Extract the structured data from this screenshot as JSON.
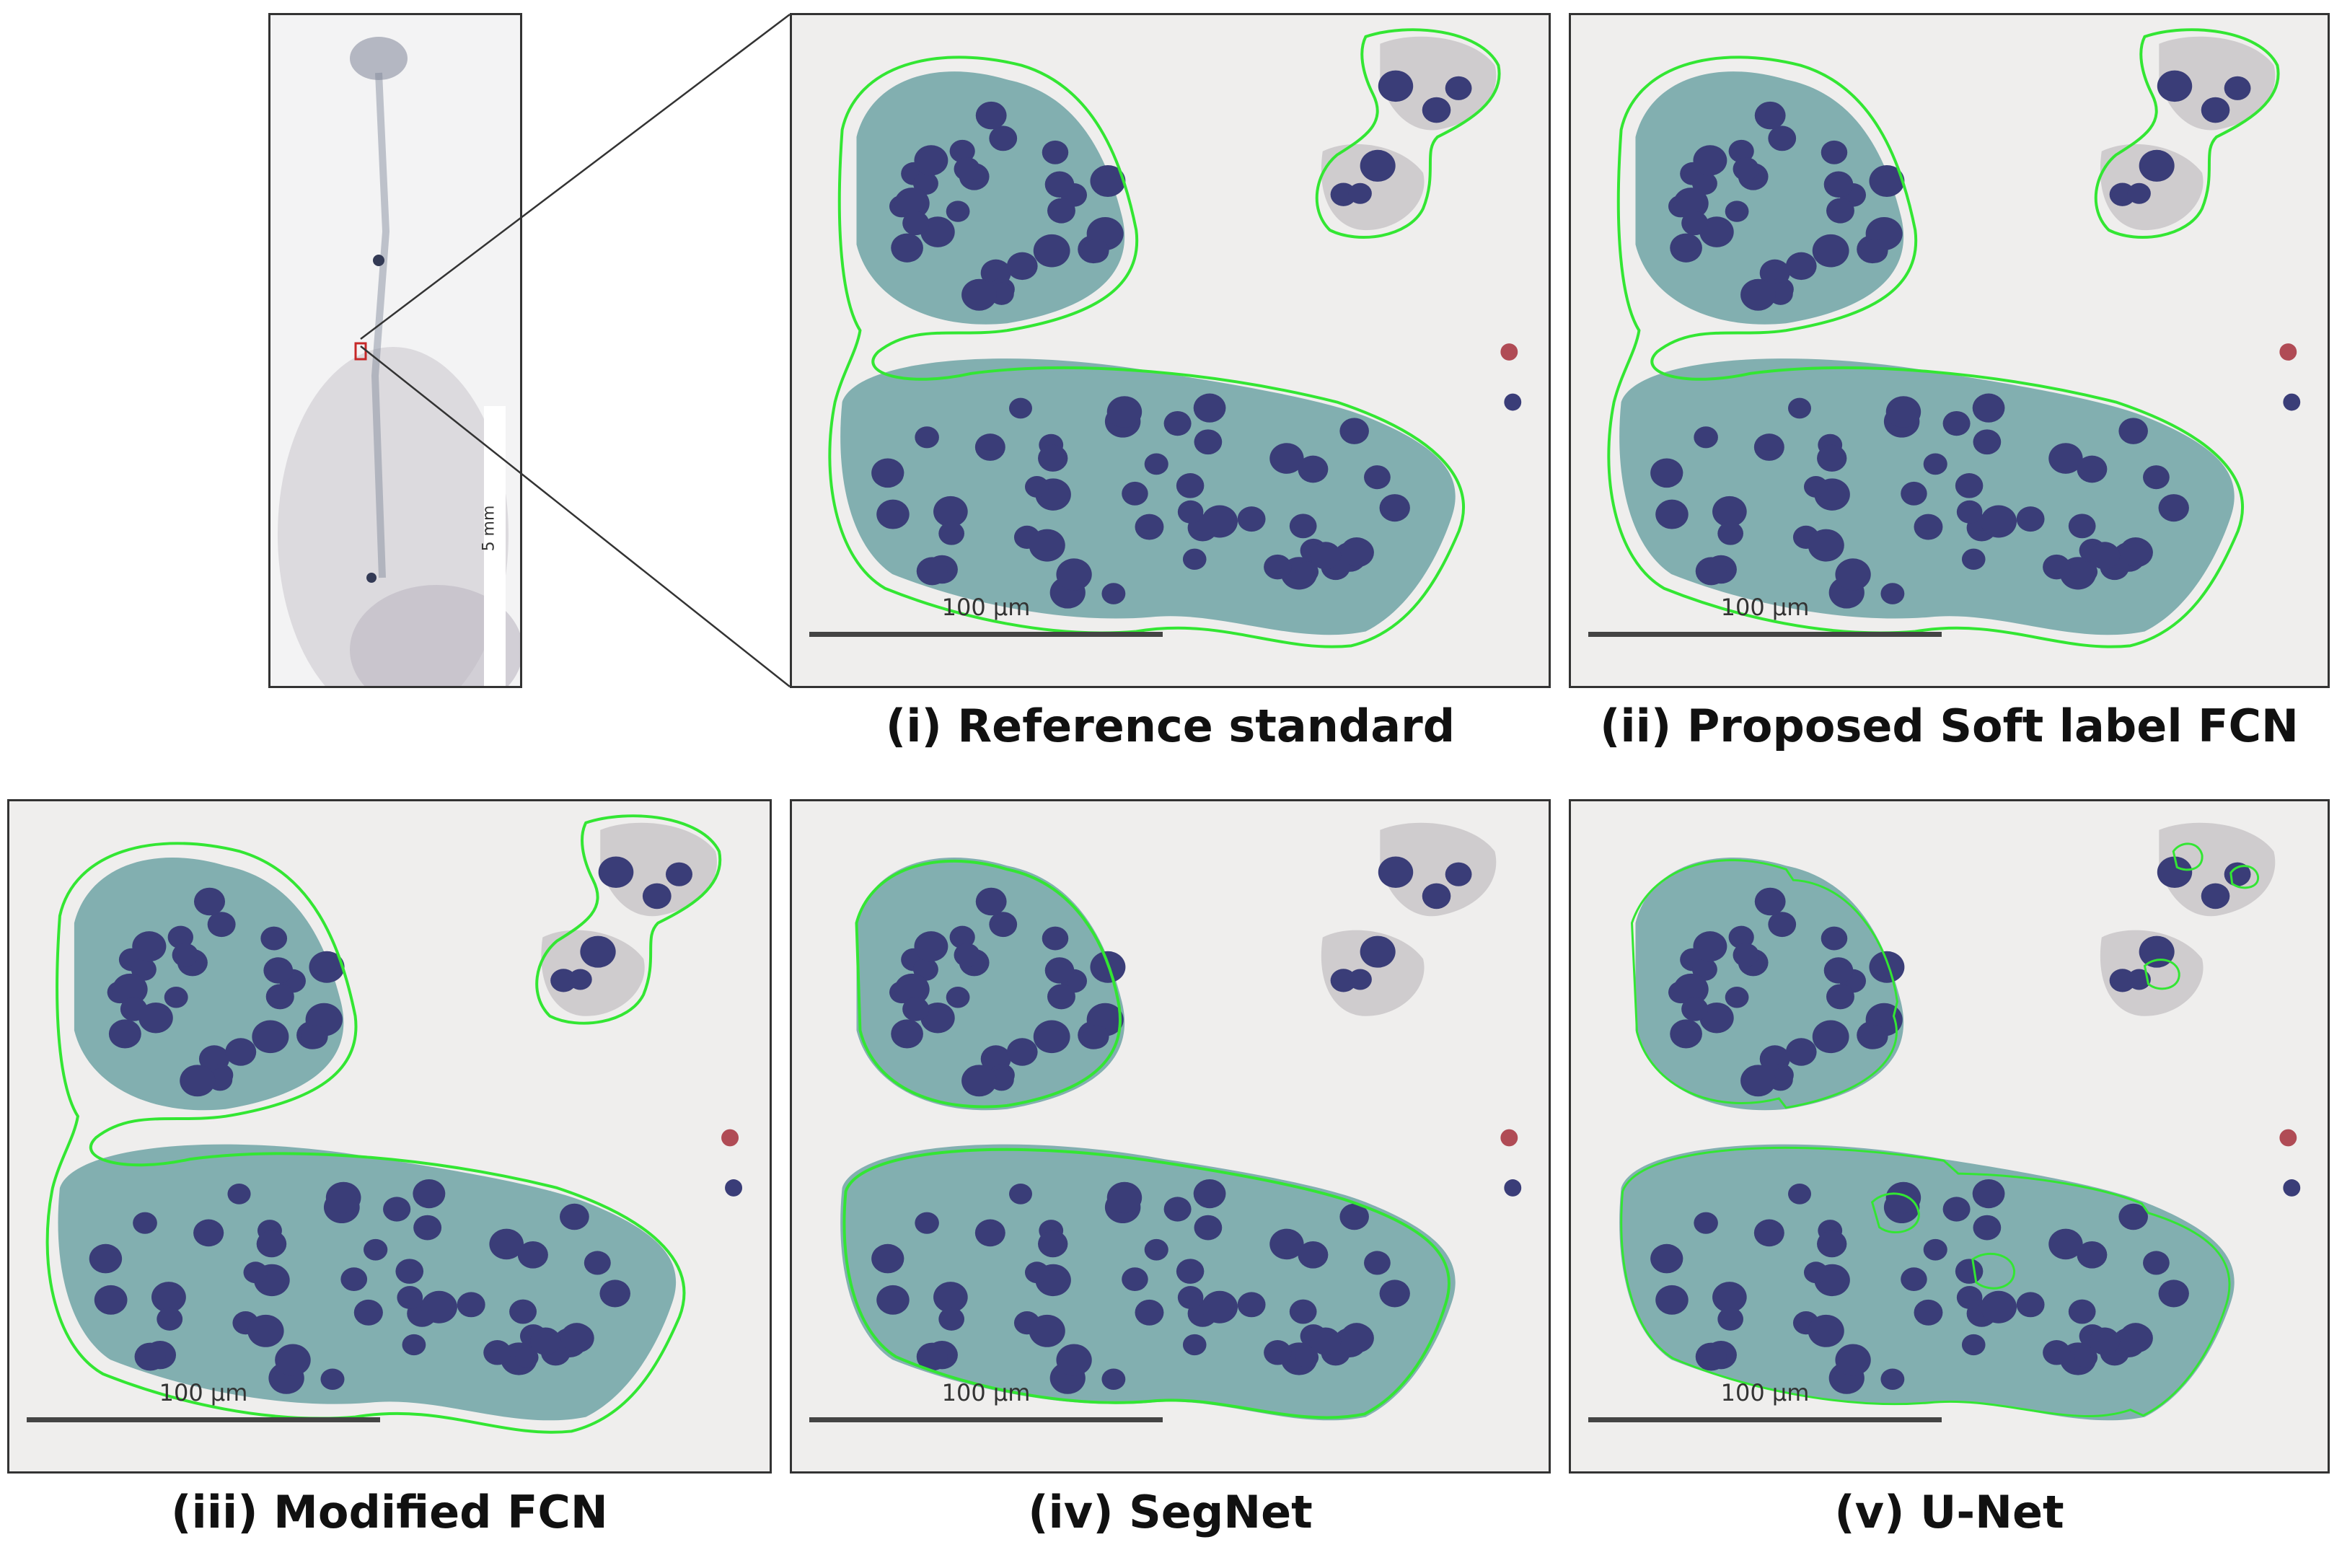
{
  "overview": {
    "scale_label": "5 mm"
  },
  "panels": [
    {
      "id": "i",
      "caption": "(i) Reference standard",
      "scale_label": "100 µm",
      "outline": "smooth"
    },
    {
      "id": "ii",
      "caption": "(ii) Proposed Soft label FCN",
      "scale_label": "100 µm",
      "outline": "smooth"
    },
    {
      "id": "iii",
      "caption": "(iii) Modified FCN",
      "scale_label": "100 µm",
      "outline": "smooth"
    },
    {
      "id": "iv",
      "caption": "(iv) SegNet",
      "scale_label": "100 µm",
      "outline": "tight"
    },
    {
      "id": "v",
      "caption": "(v) U-Net",
      "scale_label": "100 µm",
      "outline": "fragmented"
    }
  ],
  "colors": {
    "contour": "#33e633",
    "nucleus": "#3a3d78",
    "cytoplasm": "#6fa3a4",
    "frame": "#333333"
  }
}
